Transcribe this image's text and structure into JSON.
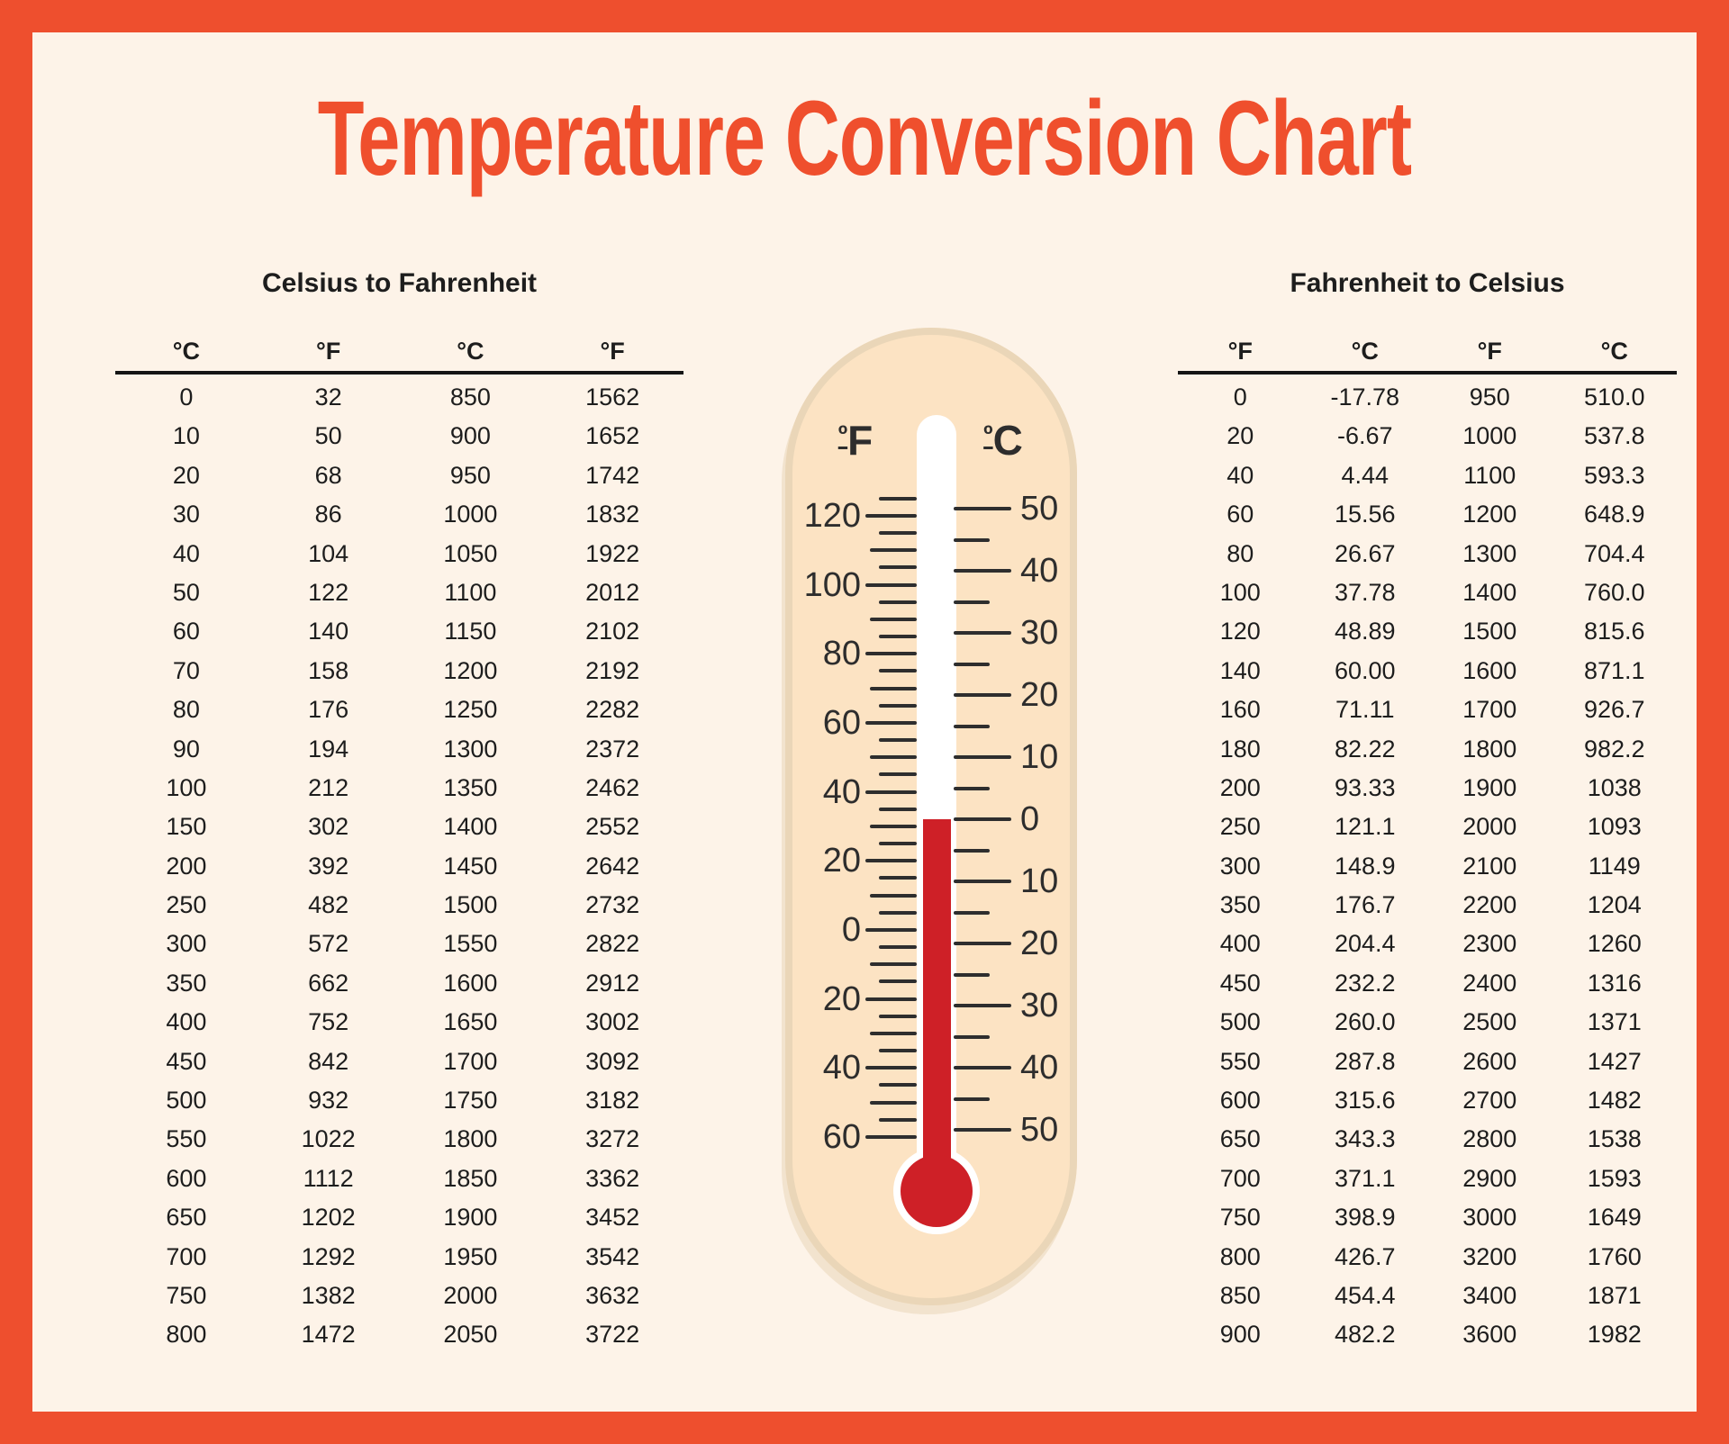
{
  "page": {
    "title": "Temperature Conversion Chart"
  },
  "colors": {
    "frame": "#ee4f2e",
    "panel_background": "#fdf3e8",
    "title": "#ef4f2d",
    "table_text": "#1d1d1d",
    "rule": "#151515",
    "thermometer_body": "#fce3c3",
    "thermometer_rim": "#ead6b8",
    "mercury": "#ce2027",
    "scale_text": "#2d2d2d"
  },
  "chart_data": [
    {
      "type": "table",
      "title": "Celsius to Fahrenheit",
      "headers": [
        "°C",
        "°F",
        "°C",
        "°F"
      ],
      "rows": [
        [
          "0",
          "32",
          "850",
          "1562"
        ],
        [
          "10",
          "50",
          "900",
          "1652"
        ],
        [
          "20",
          "68",
          "950",
          "1742"
        ],
        [
          "30",
          "86",
          "1000",
          "1832"
        ],
        [
          "40",
          "104",
          "1050",
          "1922"
        ],
        [
          "50",
          "122",
          "1100",
          "2012"
        ],
        [
          "60",
          "140",
          "1150",
          "2102"
        ],
        [
          "70",
          "158",
          "1200",
          "2192"
        ],
        [
          "80",
          "176",
          "1250",
          "2282"
        ],
        [
          "90",
          "194",
          "1300",
          "2372"
        ],
        [
          "100",
          "212",
          "1350",
          "2462"
        ],
        [
          "150",
          "302",
          "1400",
          "2552"
        ],
        [
          "200",
          "392",
          "1450",
          "2642"
        ],
        [
          "250",
          "482",
          "1500",
          "2732"
        ],
        [
          "300",
          "572",
          "1550",
          "2822"
        ],
        [
          "350",
          "662",
          "1600",
          "2912"
        ],
        [
          "400",
          "752",
          "1650",
          "3002"
        ],
        [
          "450",
          "842",
          "1700",
          "3092"
        ],
        [
          "500",
          "932",
          "1750",
          "3182"
        ],
        [
          "550",
          "1022",
          "1800",
          "3272"
        ],
        [
          "600",
          "1112",
          "1850",
          "3362"
        ],
        [
          "650",
          "1202",
          "1900",
          "3452"
        ],
        [
          "700",
          "1292",
          "1950",
          "3542"
        ],
        [
          "750",
          "1382",
          "2000",
          "3632"
        ],
        [
          "800",
          "1472",
          "2050",
          "3722"
        ]
      ]
    },
    {
      "type": "table",
      "title": "Fahrenheit to Celsius",
      "headers": [
        "°F",
        "°C",
        "°F",
        "°C"
      ],
      "rows": [
        [
          "0",
          "-17.78",
          "950",
          "510.0"
        ],
        [
          "20",
          "-6.67",
          "1000",
          "537.8"
        ],
        [
          "40",
          "4.44",
          "1100",
          "593.3"
        ],
        [
          "60",
          "15.56",
          "1200",
          "648.9"
        ],
        [
          "80",
          "26.67",
          "1300",
          "704.4"
        ],
        [
          "100",
          "37.78",
          "1400",
          "760.0"
        ],
        [
          "120",
          "48.89",
          "1500",
          "815.6"
        ],
        [
          "140",
          "60.00",
          "1600",
          "871.1"
        ],
        [
          "160",
          "71.11",
          "1700",
          "926.7"
        ],
        [
          "180",
          "82.22",
          "1800",
          "982.2"
        ],
        [
          "200",
          "93.33",
          "1900",
          "1038"
        ],
        [
          "250",
          "121.1",
          "2000",
          "1093"
        ],
        [
          "300",
          "148.9",
          "2100",
          "1149"
        ],
        [
          "350",
          "176.7",
          "2200",
          "1204"
        ],
        [
          "400",
          "204.4",
          "2300",
          "1260"
        ],
        [
          "450",
          "232.2",
          "2400",
          "1316"
        ],
        [
          "500",
          "260.0",
          "2500",
          "1371"
        ],
        [
          "550",
          "287.8",
          "2600",
          "1427"
        ],
        [
          "600",
          "315.6",
          "2700",
          "1482"
        ],
        [
          "650",
          "343.3",
          "2800",
          "1538"
        ],
        [
          "700",
          "371.1",
          "2900",
          "1593"
        ],
        [
          "750",
          "398.9",
          "3000",
          "1649"
        ],
        [
          "800",
          "426.7",
          "3200",
          "1760"
        ],
        [
          "850",
          "454.4",
          "3400",
          "1871"
        ],
        [
          "900",
          "482.2",
          "3600",
          "1982"
        ]
      ]
    },
    {
      "type": "thermometer-scale",
      "f_label": "ºF",
      "c_label": "ºC",
      "f_major_ticks": [
        120,
        100,
        80,
        60,
        40,
        20,
        0,
        -20,
        -40,
        -60
      ],
      "f_mid_ticks": [
        110,
        90,
        70,
        50,
        30,
        10,
        -10,
        -30,
        -50
      ],
      "f_minor_ticks": [
        125,
        115,
        105,
        95,
        85,
        75,
        65,
        55,
        45,
        35,
        25,
        15,
        5,
        -5,
        -15,
        -25,
        -35,
        -45,
        -55
      ],
      "c_major_ticks": [
        50,
        40,
        30,
        20,
        10,
        0,
        -10,
        -20,
        -30,
        -40,
        -50
      ],
      "c_minor_ticks": [
        45,
        35,
        25,
        15,
        5,
        -5,
        -15,
        -25,
        -35,
        -45
      ],
      "mercury_top_c": 0
    }
  ],
  "thermometer": {
    "f_label_ordinal": "º",
    "f_label_letter": "F",
    "c_label_ordinal": "º",
    "c_label_letter": "C"
  }
}
